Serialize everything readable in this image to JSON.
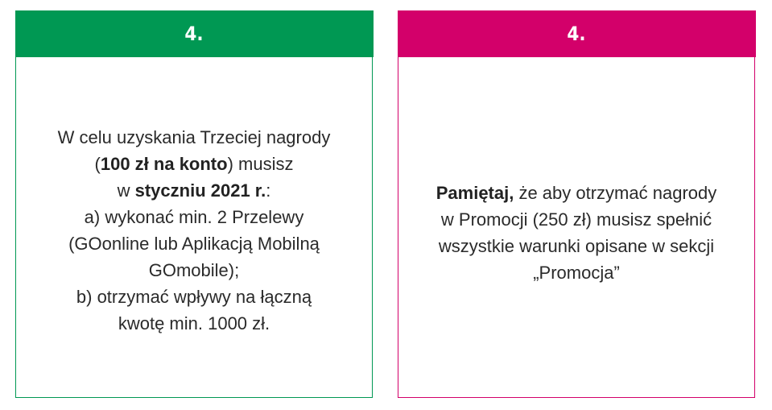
{
  "left_card": {
    "number": "4.",
    "header_color": "#009853",
    "l1": "W celu uzyskania Trzeciej nagrody",
    "l2_pre": "(",
    "l2_bold": "100 zł na konto",
    "l2_post": ") musisz",
    "l3_pre": "w ",
    "l3_bold": "styczniu 2021 r.",
    "l3_post": ":",
    "l4": "a) wykonać min. 2 Przelewy",
    "l5": "(GOonline lub Aplikacją Mobilną",
    "l6": "GOmobile);",
    "l7": "b) otrzymać wpływy na łączną",
    "l8": "kwotę min. 1000 zł."
  },
  "right_card": {
    "number": "4.",
    "header_color": "#d3006a",
    "l1_bold": "Pamiętaj,",
    "l1_post": " że aby otrzymać nagrody",
    "l2": "w Promocji (250 zł) musisz spełnić",
    "l3": "wszystkie warunki opisane w sekcji",
    "l4": "„Promocja”"
  }
}
